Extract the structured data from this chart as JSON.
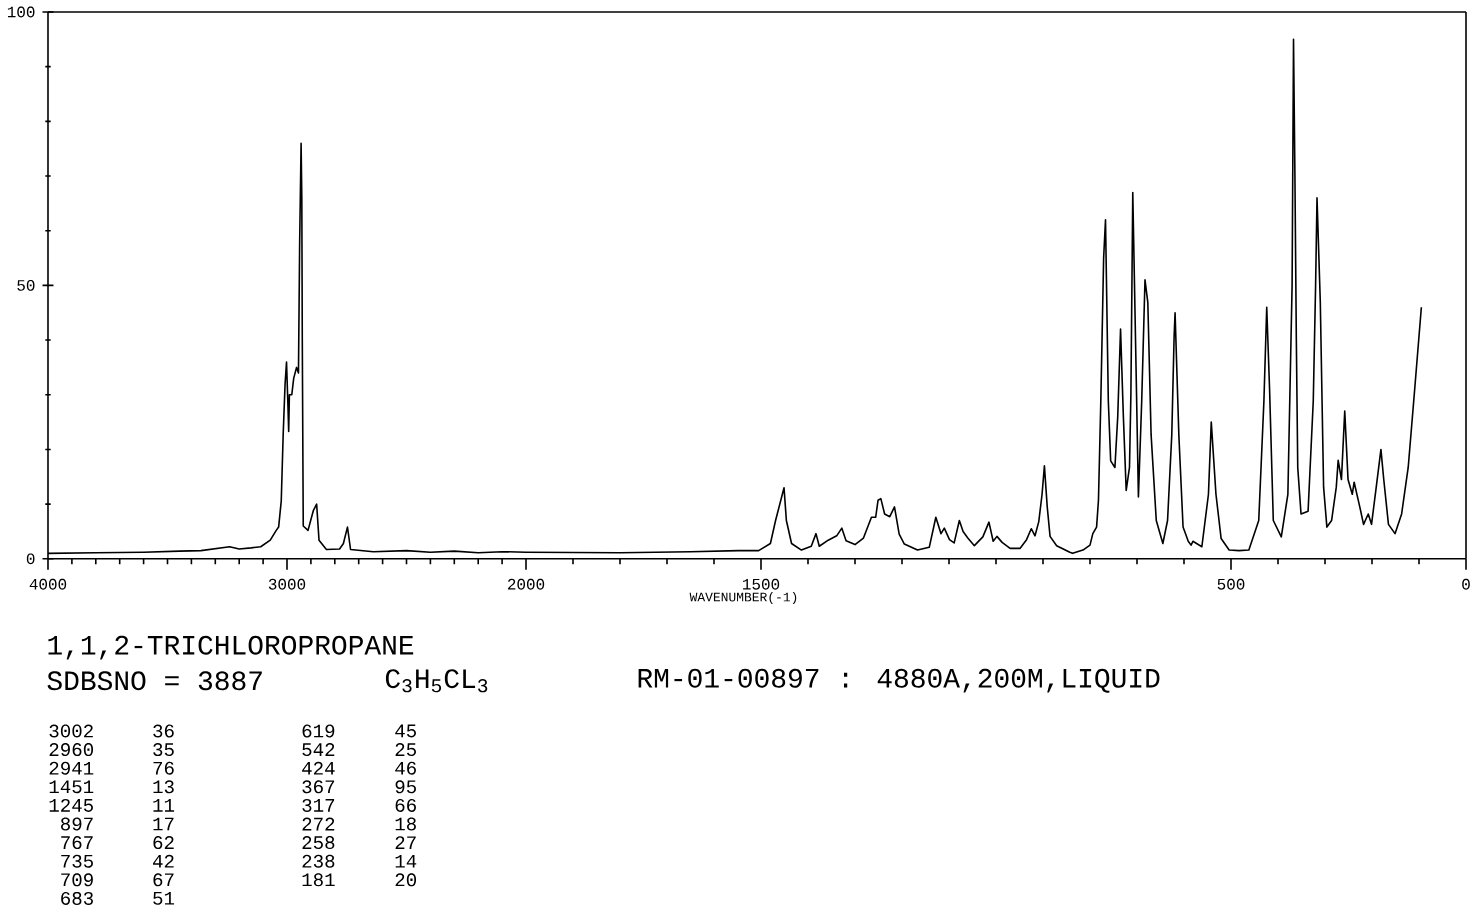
{
  "chart_data": [
    {
      "type": "line",
      "title": "1,1,2-TRICHLOROPROPANE",
      "annotations": [
        "SDBSNO = 3887",
        "C$_{3}$H$_{5}$CL$_{3}$",
        "RM-01-00897 : 4880A,200M,LIQUID",
        "3002",
        "36",
        "619",
        "45",
        "2960",
        "35",
        "542",
        "25",
        "2941",
        "76",
        "424",
        "46",
        "1451",
        "13",
        "367",
        "95",
        "1245",
        "11",
        "317",
        "66",
        "897",
        "17",
        "272",
        "18",
        "767",
        "62",
        "258",
        "27",
        "735",
        "42",
        "238",
        "14",
        "709",
        "67",
        "181",
        "20",
        "683",
        "51"
      ],
      "x": [
        4000,
        3800,
        3600,
        3450,
        3360,
        3240,
        3200,
        3150,
        3110,
        3070,
        3045,
        3035,
        3024,
        3016,
        3008,
        3002,
        2996,
        2993,
        2990,
        2980,
        2972,
        2960,
        2952,
        2947,
        2941,
        2938,
        2936,
        2932,
        2912,
        2890,
        2876,
        2866,
        2835,
        2780,
        2764,
        2747,
        2734,
        2639,
        2500,
        2400,
        2300,
        2200,
        2100,
        2000
      ],
      "values": [
        1.0,
        1.1,
        1.2,
        1.4,
        1.5,
        2.2,
        1.8,
        2.0,
        2.2,
        3.4,
        5.2,
        5.8,
        10.6,
        22.7,
        32,
        36,
        28,
        23.3,
        30,
        30,
        33,
        35,
        34,
        58,
        76,
        66,
        40,
        6,
        5.2,
        8.8,
        10,
        3.4,
        1.7,
        1.8,
        2.8,
        5.8,
        1.7,
        1.3,
        1.5,
        1.2,
        1.4,
        1.1,
        1.3,
        1.2
      ],
      "color": "#000000",
      "xlim": [
        4000,
        2000
      ],
      "xticks": [
        4000,
        {
          "value": 3900,
          "label": null
        },
        {
          "value": 3800,
          "label": null
        },
        {
          "value": 3700,
          "label": null
        },
        {
          "value": 3600,
          "label": null
        },
        {
          "value": 3500,
          "label": null
        },
        {
          "value": 3400,
          "label": null
        },
        {
          "value": 3300,
          "label": null
        },
        {
          "value": 3200,
          "label": null
        },
        {
          "value": 3100,
          "label": null
        },
        3000,
        {
          "value": 2900,
          "label": null
        },
        {
          "value": 2800,
          "label": null
        },
        {
          "value": 2700,
          "label": null
        },
        {
          "value": 2600,
          "label": null
        },
        {
          "value": 2500,
          "label": null
        },
        {
          "value": 2400,
          "label": null
        },
        {
          "value": 2300,
          "label": null
        },
        {
          "value": 2200,
          "label": null
        },
        {
          "value": 2100,
          "label": null
        },
        2000
      ],
      "ylim": [
        0,
        100
      ],
      "yticks": [
        0,
        {
          "value": 10,
          "label": null
        },
        {
          "value": 20,
          "label": null
        },
        {
          "value": 30,
          "label": null
        },
        {
          "value": 40,
          "label": null
        },
        50,
        {
          "value": 60,
          "label": null
        },
        {
          "value": 70,
          "label": null
        },
        {
          "value": 80,
          "label": null
        },
        {
          "value": 90,
          "label": null
        },
        100
      ]
    },
    {
      "type": "line",
      "xlabel": "WAVENUMBER(-1)",
      "x": [
        2000,
        1800,
        1650,
        1548,
        1505,
        1480,
        1469,
        1451,
        1446,
        1435,
        1414,
        1393,
        1383,
        1376,
        1357,
        1339,
        1328,
        1319,
        1300,
        1282,
        1265,
        1256,
        1251,
        1245,
        1237,
        1226,
        1216,
        1206,
        1195,
        1167,
        1142,
        1128,
        1117,
        1110,
        1099,
        1089,
        1078,
        1070,
        1060,
        1046,
        1028,
        1015,
        1006,
        998,
        987,
        970,
        949,
        935,
        925,
        917,
        909,
        902,
        897,
        891,
        885,
        871,
        843,
        837,
        815,
        800,
        794,
        786,
        782,
        777,
        771,
        767,
        761,
        756,
        747,
        741,
        735,
        729,
        723,
        716,
        713,
        709,
        702,
        697,
        690,
        683,
        677,
        670,
        659,
        645,
        635,
        626,
        621,
        619,
        611,
        602,
        591,
        585,
        581,
        562,
        548,
        542,
        532,
        521,
        504,
        483,
        462,
        441,
        430,
        424,
        418,
        410,
        393,
        379,
        370,
        367,
        364,
        361,
        358,
        351,
        336,
        325,
        320,
        317,
        310,
        303,
        296,
        286,
        276,
        272,
        265,
        258,
        251,
        242,
        238,
        226,
        218,
        208,
        201,
        191,
        181,
        175,
        165,
        151,
        137,
        123,
        109,
        95
      ],
      "values": [
        1.2,
        1.1,
        1.3,
        1.5,
        1.5,
        2.8,
        7,
        13,
        7,
        2.8,
        1.6,
        2.3,
        4.6,
        2.3,
        3.4,
        4.2,
        5.6,
        3.3,
        2.6,
        3.8,
        7.6,
        7.6,
        10.7,
        11,
        8.2,
        7.7,
        9.5,
        4.5,
        2.7,
        1.6,
        2.1,
        7.6,
        4.6,
        5.6,
        3.5,
        2.9,
        7,
        5,
        3.8,
        2.4,
        4,
        6.7,
        3.2,
        4.1,
        3,
        1.9,
        1.9,
        3.5,
        5.5,
        4.2,
        6.8,
        11.8,
        17,
        9.5,
        4.1,
        2.4,
        1.2,
        1,
        1.6,
        2.5,
        4.6,
        5.8,
        10.7,
        28.8,
        55,
        62,
        28.8,
        17.9,
        16.7,
        26,
        42,
        26,
        12.5,
        16.7,
        30,
        67,
        34.8,
        11.3,
        28.8,
        51,
        46.9,
        22.7,
        7,
        2.8,
        7,
        22.7,
        40.8,
        45,
        22.7,
        5.8,
        3.2,
        2.5,
        3.2,
        2.2,
        11.8,
        25,
        11.8,
        3.7,
        1.6,
        1.5,
        1.6,
        7,
        28.8,
        46,
        31.2,
        7,
        4,
        11.8,
        50,
        95,
        70,
        40,
        16.7,
        8.2,
        8.7,
        28.8,
        50,
        66,
        46.9,
        13.1,
        5.8,
        7,
        13.1,
        18,
        14.5,
        27,
        14.5,
        11.8,
        14,
        9.5,
        6.3,
        8.2,
        6.3,
        13.1,
        20,
        14.5,
        6.3,
        4.6,
        8.2,
        16.7,
        31.2,
        46
      ],
      "color": "#000000",
      "xlim": [
        2000,
        0
      ],
      "xticks": [
        {
          "value": 1900,
          "label": null
        },
        {
          "value": 1800,
          "label": null
        },
        {
          "value": 1700,
          "label": null
        },
        {
          "value": 1600,
          "label": null
        },
        1500,
        {
          "value": 1400,
          "label": null
        },
        {
          "value": 1300,
          "label": null
        },
        {
          "value": 1200,
          "label": null
        },
        {
          "value": 1100,
          "label": null
        },
        {
          "value": 1000,
          "label": null
        },
        {
          "value": 900,
          "label": null
        },
        {
          "value": 800,
          "label": null
        },
        {
          "value": 700,
          "label": null
        },
        {
          "value": 600,
          "label": null
        },
        500,
        {
          "value": 400,
          "label": null
        },
        {
          "value": 300,
          "label": null
        },
        {
          "value": 200,
          "label": null
        },
        {
          "value": 100,
          "label": null
        },
        0
      ],
      "ylim": [
        0,
        100
      ],
      "tick_labels": "x"
    }
  ]
}
